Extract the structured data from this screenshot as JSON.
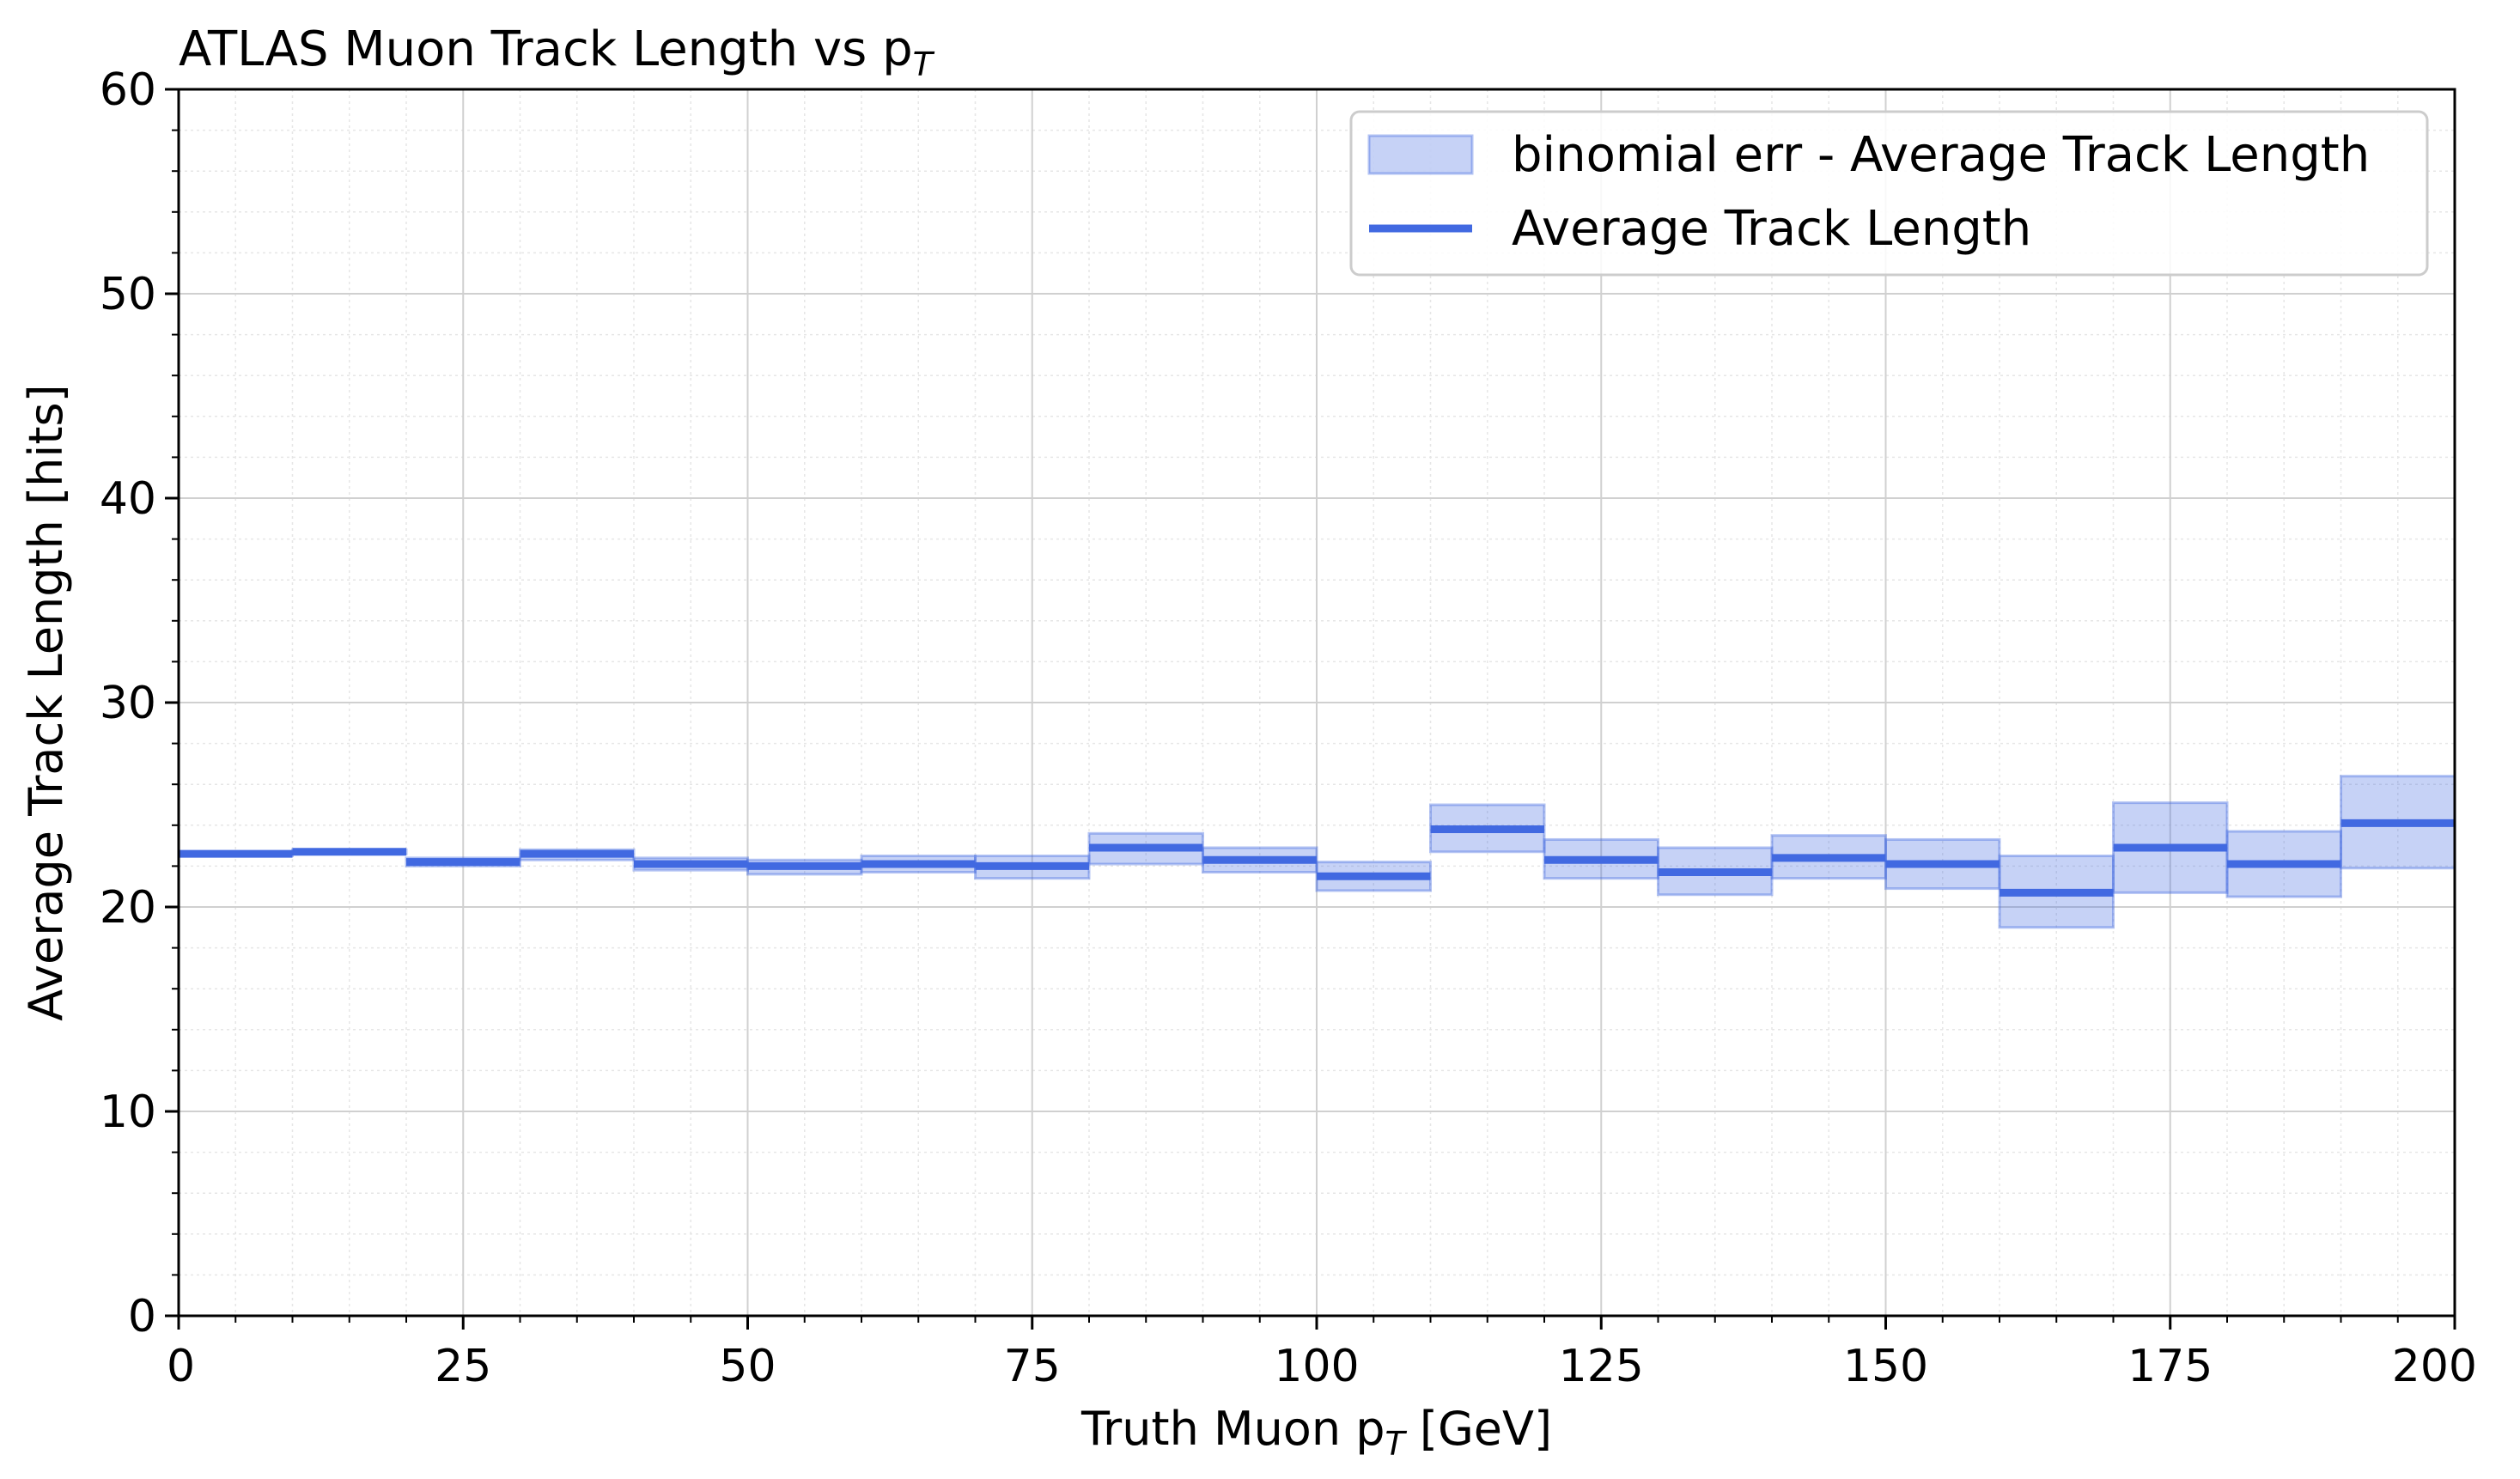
{
  "chart_data": {
    "type": "line",
    "title": "ATLAS Muon Track Length vs p",
    "title_subscript": "T",
    "xlabel_prefix": "Truth Muon p",
    "xlabel_subscript": "T",
    "xlabel_suffix": " [GeV]",
    "ylabel": "Average Track Length [hits]",
    "xlim": [
      0,
      200
    ],
    "ylim": [
      0,
      60
    ],
    "xticks": [
      0,
      25,
      50,
      75,
      100,
      125,
      150,
      175,
      200
    ],
    "yticks": [
      0,
      10,
      20,
      30,
      40,
      50,
      60
    ],
    "grid": true,
    "legend_placement": "top-right",
    "series": [
      {
        "name": "binomial err - Average Track Length",
        "kind": "error-band",
        "color": "#4169e1"
      },
      {
        "name": "Average Track Length",
        "kind": "step",
        "color": "#4169e1"
      }
    ],
    "bins": [
      {
        "x0": 0,
        "x1": 10,
        "y": 22.6,
        "lo": 22.5,
        "hi": 22.7
      },
      {
        "x0": 10,
        "x1": 20,
        "y": 22.7,
        "lo": 22.6,
        "hi": 22.8
      },
      {
        "x0": 20,
        "x1": 30,
        "y": 22.2,
        "lo": 22.0,
        "hi": 22.4
      },
      {
        "x0": 30,
        "x1": 40,
        "y": 22.6,
        "lo": 22.3,
        "hi": 22.8
      },
      {
        "x0": 40,
        "x1": 50,
        "y": 22.1,
        "lo": 21.8,
        "hi": 22.4
      },
      {
        "x0": 50,
        "x1": 60,
        "y": 22.0,
        "lo": 21.6,
        "hi": 22.3
      },
      {
        "x0": 60,
        "x1": 70,
        "y": 22.1,
        "lo": 21.7,
        "hi": 22.5
      },
      {
        "x0": 70,
        "x1": 80,
        "y": 22.0,
        "lo": 21.4,
        "hi": 22.5
      },
      {
        "x0": 80,
        "x1": 90,
        "y": 22.9,
        "lo": 22.1,
        "hi": 23.6
      },
      {
        "x0": 90,
        "x1": 100,
        "y": 22.3,
        "lo": 21.7,
        "hi": 22.9
      },
      {
        "x0": 100,
        "x1": 110,
        "y": 21.5,
        "lo": 20.8,
        "hi": 22.2
      },
      {
        "x0": 110,
        "x1": 120,
        "y": 23.8,
        "lo": 22.7,
        "hi": 25.0
      },
      {
        "x0": 120,
        "x1": 130,
        "y": 22.3,
        "lo": 21.4,
        "hi": 23.3
      },
      {
        "x0": 130,
        "x1": 140,
        "y": 21.7,
        "lo": 20.6,
        "hi": 22.9
      },
      {
        "x0": 140,
        "x1": 150,
        "y": 22.4,
        "lo": 21.4,
        "hi": 23.5
      },
      {
        "x0": 150,
        "x1": 160,
        "y": 22.1,
        "lo": 20.9,
        "hi": 23.3
      },
      {
        "x0": 160,
        "x1": 170,
        "y": 20.7,
        "lo": 19.0,
        "hi": 22.5
      },
      {
        "x0": 170,
        "x1": 180,
        "y": 22.9,
        "lo": 20.7,
        "hi": 25.1
      },
      {
        "x0": 180,
        "x1": 190,
        "y": 22.1,
        "lo": 20.5,
        "hi": 23.7
      },
      {
        "x0": 190,
        "x1": 200,
        "y": 24.1,
        "lo": 21.9,
        "hi": 26.4
      }
    ]
  }
}
